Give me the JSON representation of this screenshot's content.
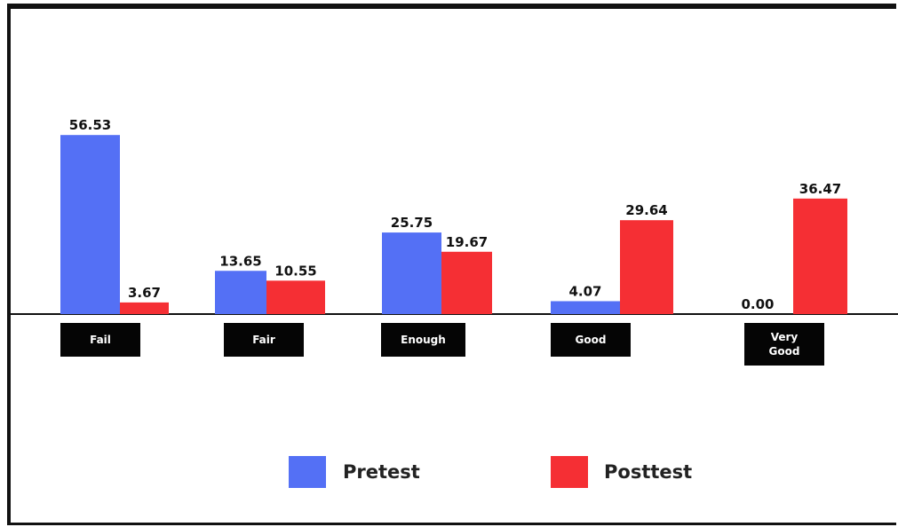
{
  "chart_data": {
    "type": "bar",
    "categories": [
      "Fail",
      "Fair",
      "Enough",
      "Good",
      "Very Good"
    ],
    "series": [
      {
        "name": "Pretest",
        "values": [
          56.53,
          13.65,
          25.75,
          4.07,
          0.0
        ],
        "color": "#5470f5"
      },
      {
        "name": "Posttest",
        "values": [
          3.67,
          10.55,
          19.67,
          29.64,
          36.47
        ],
        "color": "#f52f34"
      }
    ],
    "value_labels": [
      [
        "56.53",
        "13.65",
        "25.75",
        "4.07",
        "0.00"
      ],
      [
        "3.67",
        "10.55",
        "19.67",
        "29.64",
        "36.47"
      ]
    ],
    "category_label_lines": [
      [
        "Fail"
      ],
      [
        "Fair"
      ],
      [
        "Enough"
      ],
      [
        "Good"
      ],
      [
        "Very",
        "Good"
      ]
    ],
    "title": "",
    "xlabel": "",
    "ylabel": "",
    "ylim": [
      0,
      60
    ],
    "grid": false,
    "legend_position": "bottom-center"
  }
}
